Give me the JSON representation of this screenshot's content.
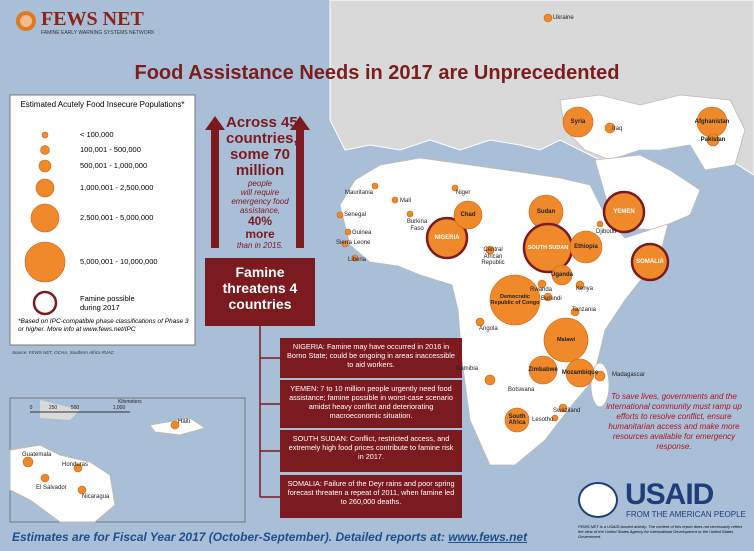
{
  "header": {
    "logo": "FEWS NET",
    "logo_subtitle": "FAMINE EARLY WARNING SYSTEMS NETWORK",
    "title": "Food Assistance Needs in 2017 are Unprecedented"
  },
  "legend": {
    "title": "Estimated Acutely Food Insecure Populations*",
    "items": [
      "< 100,000",
      "100,001 - 500,000",
      "500,001 - 1,000,000",
      "1,000,001 - 2,500,000",
      "2,500,001 - 5,000,000",
      "5,000,001 - 10,000,000",
      "Famine possible during 2017"
    ],
    "note": "*Based on IPC-compatible phase classifications of Phase 3 or higher. More info at www.fews.net/IPC",
    "source": "Source: FEWS NET, OCHA, Southern Africa RVAC"
  },
  "headline": {
    "lines": [
      "Across 45",
      "countries,",
      "some 70",
      "million",
      "people",
      "will require",
      "emergency food",
      "assistance,",
      "40%",
      "more",
      "than in 2015."
    ]
  },
  "famine": {
    "title": "Famine threatens 4 countries",
    "notes": [
      "NIGERIA: Famine may have occurred in 2016 in Borno State; could be ongoing in areas inaccessible to aid workers.",
      "YEMEN: 7 to 10 million people urgently need food assistance; famine possible in worst-case scenario amidst heavy conflict and deteriorating macroeconomic situation.",
      "SOUTH SUDAN:  Conflict, restricted access, and extremely high food prices contribute to famine risk in 2017.",
      "SOMALIA: Failure of the Deyr rains and poor spring forecast threaten a repeat of 2011, when famine led to 260,000 deaths."
    ]
  },
  "map": {
    "countries": [
      "Ukraine",
      "Syria",
      "Iraq",
      "Afghanistan",
      "Pakistan",
      "Mauritania",
      "Mali",
      "Niger",
      "Senegal",
      "Burkina Faso",
      "Guinea",
      "Sierra Leone",
      "Liberia",
      "NIGERIA",
      "Chad",
      "Central African Republic",
      "Sudan",
      "SOUTH SUDAN",
      "Ethiopia",
      "Djibouti",
      "YEMEN",
      "SOMALIA",
      "Uganda",
      "Kenya",
      "Rwanda",
      "Burundi",
      "Democratic Republic of Congo",
      "Tanzania",
      "Angola",
      "Malawi",
      "Namibia",
      "Botswana",
      "Zimbabwe",
      "Mozambique",
      "Madagascar",
      "South Africa",
      "Lesotho",
      "Swaziland"
    ],
    "inset": {
      "scale": [
        "0",
        "250",
        "500",
        "1,000"
      ],
      "unit": "Kilometers",
      "countries": [
        "Haiti",
        "Guatemala",
        "Honduras",
        "El Salvador",
        "Nicaragua"
      ]
    }
  },
  "call_to_action": "To save lives, governments and the international community must ramp up efforts to resolve conflict, ensure humanitarian access and make more resources available for emergency response.",
  "footer": {
    "text": "Estimates are for Fiscal Year 2017 (October-September). Detailed reports at:",
    "link": "www.fews.net"
  },
  "usaid": {
    "logo": "USAID",
    "tagline": "FROM THE AMERICAN PEOPLE",
    "disclaimer": "FEWS NET is a USAID-funded activity. The content of this report does not necessarily reflect the view of the United States Agency for International Development or the United States Government."
  }
}
